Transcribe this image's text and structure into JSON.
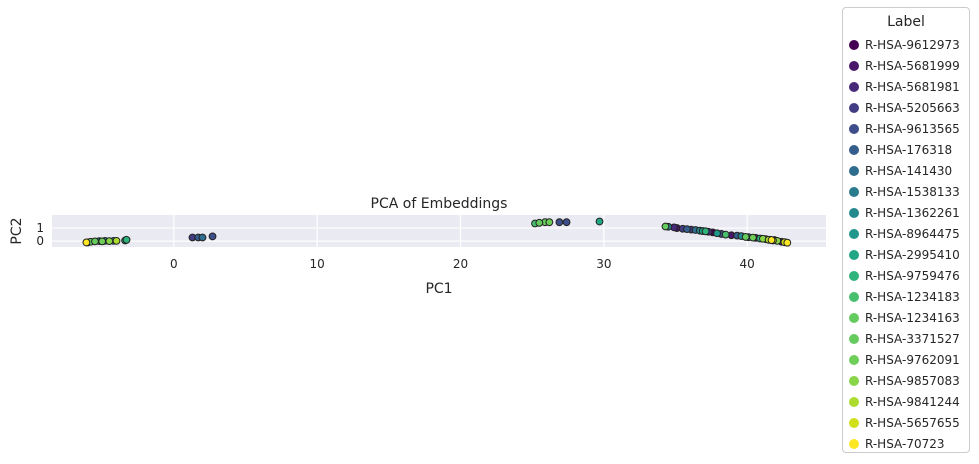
{
  "chart_data": {
    "type": "scatter",
    "title": "PCA of Embeddings",
    "xlabel": "PC1",
    "ylabel": "PC2",
    "xlim": [
      -8.5,
      45.5
    ],
    "ylim": [
      -0.45,
      2.0
    ],
    "xticks": [
      0,
      10,
      20,
      30,
      40
    ],
    "yticks": [
      0,
      1
    ],
    "grid": true,
    "legend_placement": "outside-right",
    "legend_title": "Label",
    "series": [
      {
        "name": "R-HSA-9612973",
        "color": "#440154",
        "points": [
          [
            37.6,
            0.67
          ],
          [
            41.9,
            0.08
          ]
        ]
      },
      {
        "name": "R-HSA-5681999",
        "color": "#481769",
        "points": [
          [
            35.1,
            1.0
          ],
          [
            38.9,
            0.45
          ],
          [
            42.4,
            -0.05
          ]
        ]
      },
      {
        "name": "R-HSA-5681981",
        "color": "#472a7a",
        "points": [
          [
            34.9,
            1.05
          ],
          [
            37.3,
            0.72
          ],
          [
            40.6,
            0.25
          ]
        ]
      },
      {
        "name": "R-HSA-5205663",
        "color": "#433d84",
        "points": [
          [
            1.3,
            0.28
          ],
          [
            35.5,
            0.95
          ],
          [
            36.1,
            0.88
          ]
        ]
      },
      {
        "name": "R-HSA-9613565",
        "color": "#3d4e8a",
        "points": [
          [
            2.7,
            0.36
          ],
          [
            26.9,
            1.45
          ],
          [
            27.4,
            1.45
          ],
          [
            38.2,
            0.55
          ]
        ]
      },
      {
        "name": "R-HSA-176318",
        "color": "#355e8d",
        "points": [
          [
            1.7,
            0.28
          ],
          [
            35.8,
            0.92
          ],
          [
            39.3,
            0.42
          ]
        ]
      },
      {
        "name": "R-HSA-141430",
        "color": "#2e6d8e",
        "points": [
          [
            2.0,
            0.28
          ],
          [
            36.4,
            0.85
          ],
          [
            40.1,
            0.3
          ]
        ]
      },
      {
        "name": "R-HSA-1538133",
        "color": "#297b8e",
        "points": [
          [
            -5.2,
            0.0
          ],
          [
            34.5,
            1.1
          ],
          [
            41.3,
            0.15
          ]
        ]
      },
      {
        "name": "R-HSA-1362261",
        "color": "#23898e",
        "points": [
          [
            -4.8,
            0.02
          ],
          [
            36.7,
            0.8
          ],
          [
            39.6,
            0.38
          ]
        ]
      },
      {
        "name": "R-HSA-8964475",
        "color": "#1f978b",
        "points": [
          [
            -4.2,
            0.02
          ],
          [
            37.9,
            0.6
          ],
          [
            41.6,
            0.1
          ]
        ]
      },
      {
        "name": "R-HSA-2995410",
        "color": "#21a585",
        "points": [
          [
            -3.4,
            0.05
          ],
          [
            29.7,
            1.5
          ],
          [
            36.9,
            0.77
          ]
        ]
      },
      {
        "name": "R-HSA-9759476",
        "color": "#2eb37c",
        "points": [
          [
            -3.3,
            0.1
          ],
          [
            37.1,
            0.75
          ],
          [
            40.9,
            0.2
          ]
        ]
      },
      {
        "name": "R-HSA-1234183",
        "color": "#46c06f",
        "points": [
          [
            -6.0,
            -0.1
          ],
          [
            25.2,
            1.35
          ],
          [
            38.5,
            0.5
          ]
        ]
      },
      {
        "name": "R-HSA-1234163",
        "color": "#65cb5e",
        "points": [
          [
            -5.8,
            -0.05
          ],
          [
            25.9,
            1.45
          ],
          [
            34.3,
            1.12
          ]
        ]
      },
      {
        "name": "R-HSA-3371527",
        "color": "#65cb5e",
        "points": [
          [
            -5.5,
            -0.02
          ],
          [
            25.5,
            1.4
          ],
          [
            39.9,
            0.32
          ]
        ]
      },
      {
        "name": "R-HSA-9762091",
        "color": "#6ece58",
        "points": [
          [
            -5.0,
            -0.02
          ],
          [
            26.2,
            1.45
          ],
          [
            40.4,
            0.27
          ]
        ]
      },
      {
        "name": "R-HSA-9857083",
        "color": "#89d548",
        "points": [
          [
            -4.5,
            0.0
          ],
          [
            41.1,
            0.18
          ],
          [
            42.1,
            0.02
          ]
        ]
      },
      {
        "name": "R-HSA-9841244",
        "color": "#addc30",
        "points": [
          [
            -4.0,
            0.02
          ],
          [
            41.5,
            0.1
          ]
        ]
      },
      {
        "name": "R-HSA-5657655",
        "color": "#d0e11c",
        "points": [
          [
            41.8,
            0.05
          ],
          [
            42.6,
            -0.08
          ]
        ]
      },
      {
        "name": "R-HSA-70723",
        "color": "#fde725",
        "points": [
          [
            -6.1,
            -0.1
          ],
          [
            42.8,
            -0.12
          ],
          [
            41.7,
            0.08
          ]
        ]
      }
    ]
  }
}
